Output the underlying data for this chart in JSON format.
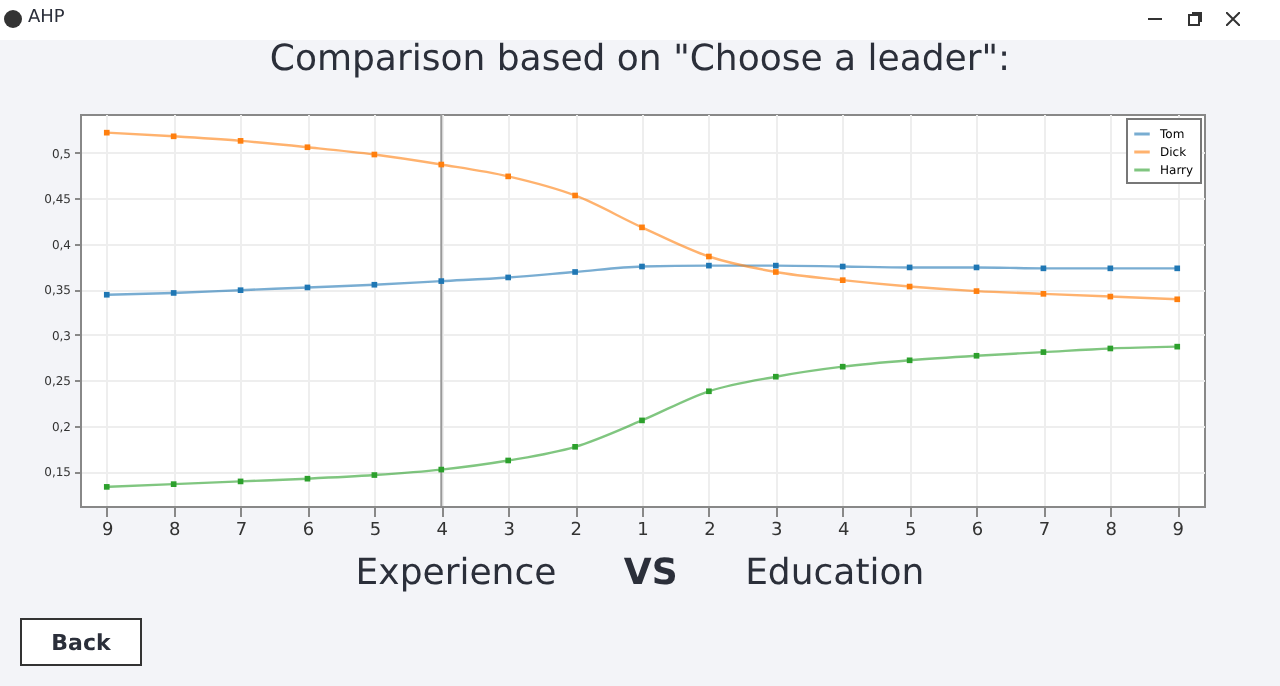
{
  "chart_data": {
    "type": "line",
    "title": "Comparison based on \"Choose a leader\":",
    "xlabel": "Experience VS Education",
    "annotations": [
      "AHP",
      "Back"
    ],
    "categories": [
      "9",
      "8",
      "7",
      "6",
      "5",
      "4",
      "3",
      "2",
      "1",
      "2",
      "3",
      "4",
      "5",
      "6",
      "7",
      "8",
      "9"
    ],
    "series": [
      {
        "name": "Tom",
        "color": "#1f77b4",
        "values": [
          0.344,
          0.346,
          0.349,
          0.352,
          0.355,
          0.359,
          0.363,
          0.369,
          0.375,
          0.376,
          0.376,
          0.375,
          0.374,
          0.374,
          0.373,
          0.373,
          0.373
        ]
      },
      {
        "name": "Dick",
        "color": "#ff7f0e",
        "values": [
          0.522,
          0.518,
          0.513,
          0.506,
          0.498,
          0.487,
          0.474,
          0.453,
          0.418,
          0.386,
          0.369,
          0.36,
          0.353,
          0.348,
          0.345,
          0.342,
          0.339
        ]
      },
      {
        "name": "Harry",
        "color": "#2ca02c",
        "values": [
          0.133,
          0.136,
          0.139,
          0.142,
          0.146,
          0.152,
          0.162,
          0.177,
          0.206,
          0.238,
          0.254,
          0.265,
          0.272,
          0.277,
          0.281,
          0.285,
          0.287
        ]
      }
    ],
    "ylim": [
      0.112,
      0.5425
    ],
    "yticks": [
      {
        "value": 0.15,
        "label": "0,15"
      },
      {
        "value": 0.2,
        "label": "0,2"
      },
      {
        "value": 0.25,
        "label": "0,25"
      },
      {
        "value": 0.3,
        "label": "0,3"
      },
      {
        "value": 0.35,
        "label": "0,35"
      },
      {
        "value": 0.4,
        "label": "0,4"
      },
      {
        "value": 0.45,
        "label": "0,45"
      },
      {
        "value": 0.5,
        "label": "0,5"
      }
    ],
    "ref_lines": [
      {
        "axis": "x",
        "value": "4",
        "color": "#999999"
      }
    ],
    "grid": true,
    "legend": "top right",
    "marker": "square",
    "line_style": "solid"
  }
}
